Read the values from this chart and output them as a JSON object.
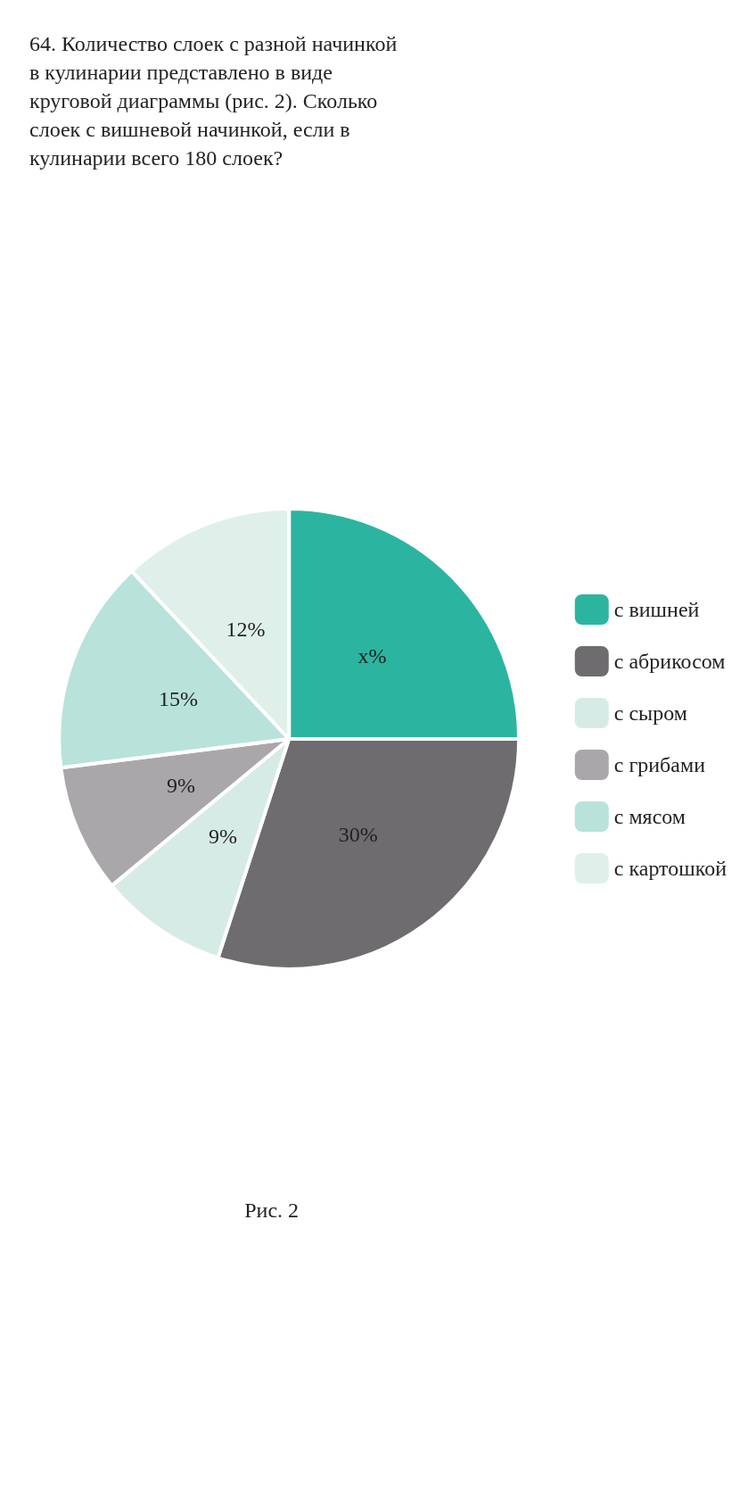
{
  "chart_data": {
    "type": "pie",
    "title": "64. Количество слоек с разной начинкой в кулинарии представлено в виде круговой диаграммы (рис. 2). Сколько слоек с вишневой начинкой, если в кулинарии всего 180 слоек?",
    "categories": [
      "с вишней",
      "с абрикосом",
      "с сыром",
      "с грибами",
      "с мясом",
      "с картошкой"
    ],
    "values": [
      25,
      30,
      9,
      9,
      15,
      12
    ],
    "value_labels": [
      "x%",
      "30%",
      "9%",
      "9%",
      "15%",
      "12%"
    ],
    "colors": [
      "#2bb5a0",
      "#6e6c6e",
      "#d6ebe5",
      "#a9a7a9",
      "#b8e2da",
      "#dff0ea"
    ],
    "legend": "right",
    "annotations": [
      "Рис. 2"
    ]
  }
}
